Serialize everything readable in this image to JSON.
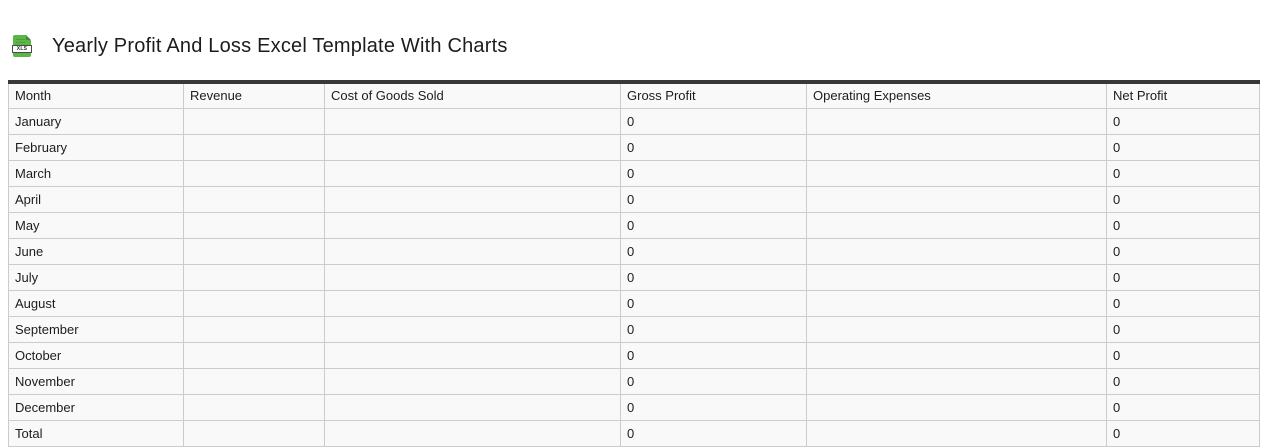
{
  "header": {
    "title": "Yearly Profit And Loss Excel Template With Charts",
    "file_icon_label": "XLS"
  },
  "colors": {
    "icon_green": "#5bb647",
    "table_top_border": "#383838",
    "cell_border": "#cccccc",
    "cell_background": "#f9f9f9",
    "text": "#1d1d1d"
  },
  "table": {
    "columns": [
      "Month",
      "Revenue",
      "Cost of Goods Sold",
      "Gross Profit",
      "Operating Expenses",
      "Net Profit"
    ],
    "rows": [
      [
        "January",
        "",
        "",
        "0",
        "",
        "0"
      ],
      [
        "February",
        "",
        "",
        "0",
        "",
        "0"
      ],
      [
        "March",
        "",
        "",
        "0",
        "",
        "0"
      ],
      [
        "April",
        "",
        "",
        "0",
        "",
        "0"
      ],
      [
        "May",
        "",
        "",
        "0",
        "",
        "0"
      ],
      [
        "June",
        "",
        "",
        "0",
        "",
        "0"
      ],
      [
        "July",
        "",
        "",
        "0",
        "",
        "0"
      ],
      [
        "August",
        "",
        "",
        "0",
        "",
        "0"
      ],
      [
        "September",
        "",
        "",
        "0",
        "",
        "0"
      ],
      [
        "October",
        "",
        "",
        "0",
        "",
        "0"
      ],
      [
        "November",
        "",
        "",
        "0",
        "",
        "0"
      ],
      [
        "December",
        "",
        "",
        "0",
        "",
        "0"
      ],
      [
        "Total",
        "",
        "",
        "0",
        "",
        "0"
      ]
    ]
  }
}
